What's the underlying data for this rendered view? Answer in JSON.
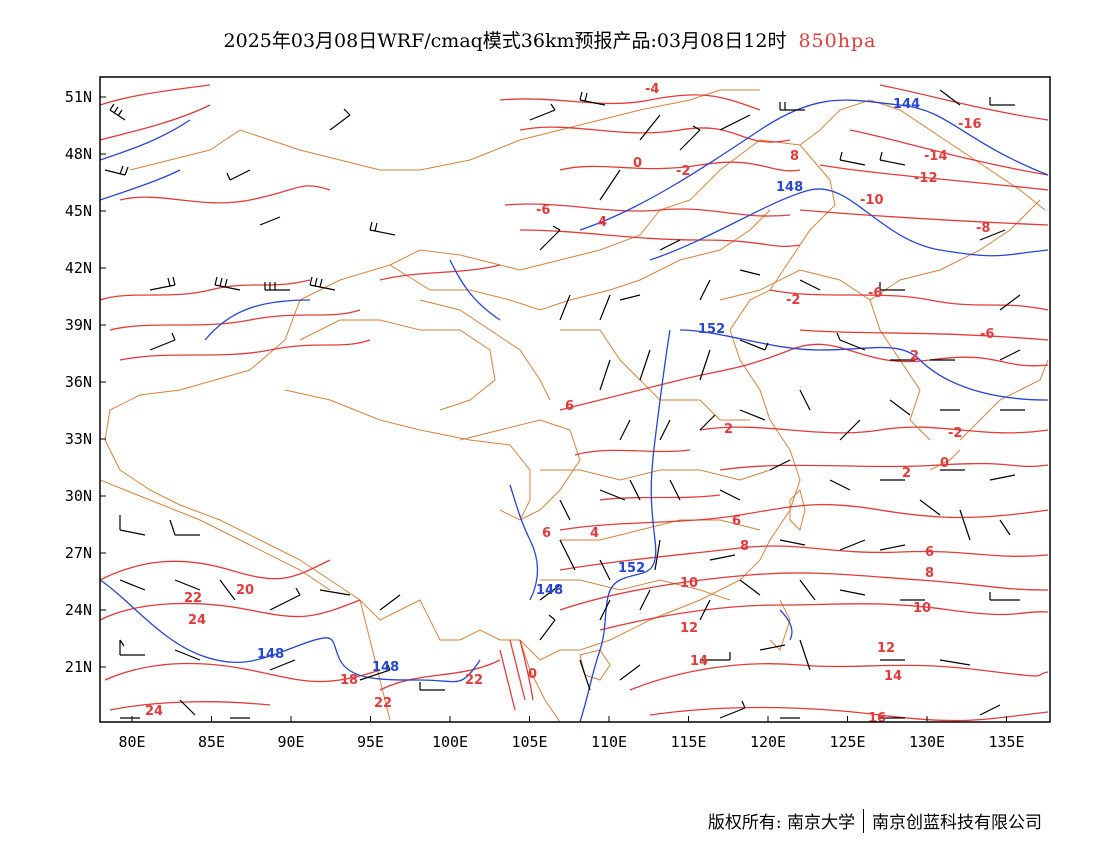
{
  "title": {
    "main": "2025年03月08日WRF/cmaq模式36km预报产品:03月08日12时",
    "level": "850hpa"
  },
  "axes": {
    "lat_labels": [
      "51N",
      "48N",
      "45N",
      "42N",
      "39N",
      "36N",
      "33N",
      "30N",
      "27N",
      "24N",
      "21N"
    ],
    "lon_labels": [
      "80E",
      "85E",
      "90E",
      "95E",
      "100E",
      "105E",
      "110E",
      "115E",
      "120E",
      "125E",
      "130E",
      "135E"
    ]
  },
  "colors": {
    "temperature": "#e33b3b",
    "height": "#2646d6",
    "border": "#d9823b",
    "barb": "#000000"
  },
  "temp_labels": [
    "-4",
    "-16",
    "0",
    "-2",
    "8",
    "-14",
    "-12",
    "-6",
    "4",
    "-10",
    "-8",
    "-6",
    "-2",
    "-6",
    "2",
    "-2",
    "6",
    "2",
    "0",
    "2",
    "6",
    "4",
    "6",
    "8",
    "8",
    "6",
    "10",
    "10",
    "12",
    "14",
    "12",
    "14",
    "20",
    "22",
    "24",
    "18",
    "22",
    "22",
    "0",
    "24",
    "16"
  ],
  "height_labels": [
    "144",
    "148",
    "152",
    "148",
    "152",
    "148",
    "148"
  ],
  "footer": {
    "owner": "版权所有: 南京大学",
    "company": "南京创蓝科技有限公司"
  }
}
